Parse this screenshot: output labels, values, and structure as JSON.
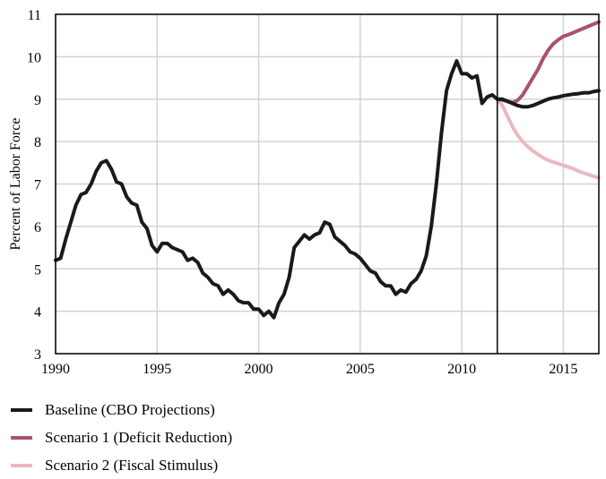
{
  "chart_data": {
    "type": "line",
    "title": "",
    "xlabel": "",
    "ylabel": "Percent of Labor Force",
    "xlim": [
      1990,
      2016.75
    ],
    "ylim": [
      3,
      11
    ],
    "xticks": [
      1990,
      1995,
      2000,
      2005,
      2010,
      2015
    ],
    "yticks": [
      3,
      4,
      5,
      6,
      7,
      8,
      9,
      10,
      11
    ],
    "grid": true,
    "projection_start": 2011.75,
    "legend_position": "bottom-left",
    "series": [
      {
        "name": "Baseline (CBO Projections)",
        "color": "#1a1a1a",
        "x": [
          1990,
          1990.25,
          1990.5,
          1990.75,
          1991,
          1991.25,
          1991.5,
          1991.75,
          1992,
          1992.25,
          1992.5,
          1992.75,
          1993,
          1993.25,
          1993.5,
          1993.75,
          1994,
          1994.25,
          1994.5,
          1994.75,
          1995,
          1995.25,
          1995.5,
          1995.75,
          1996,
          1996.25,
          1996.5,
          1996.75,
          1997,
          1997.25,
          1997.5,
          1997.75,
          1998,
          1998.25,
          1998.5,
          1998.75,
          1999,
          1999.25,
          1999.5,
          1999.75,
          2000,
          2000.25,
          2000.5,
          2000.75,
          2001,
          2001.25,
          2001.5,
          2001.75,
          2002,
          2002.25,
          2002.5,
          2002.75,
          2003,
          2003.25,
          2003.5,
          2003.75,
          2004,
          2004.25,
          2004.5,
          2004.75,
          2005,
          2005.25,
          2005.5,
          2005.75,
          2006,
          2006.25,
          2006.5,
          2006.75,
          2007,
          2007.25,
          2007.5,
          2007.75,
          2008,
          2008.25,
          2008.5,
          2008.75,
          2009,
          2009.25,
          2009.5,
          2009.75,
          2010,
          2010.25,
          2010.5,
          2010.75,
          2011,
          2011.25,
          2011.5,
          2011.75,
          2012,
          2012.25,
          2012.5,
          2012.75,
          2013,
          2013.25,
          2013.5,
          2013.75,
          2014,
          2014.25,
          2014.5,
          2014.75,
          2015,
          2015.25,
          2015.5,
          2015.75,
          2016,
          2016.25,
          2016.5,
          2016.75
        ],
        "values": [
          5.2,
          5.25,
          5.7,
          6.1,
          6.5,
          6.75,
          6.8,
          7.0,
          7.3,
          7.5,
          7.55,
          7.35,
          7.05,
          7.0,
          6.7,
          6.55,
          6.5,
          6.1,
          5.95,
          5.55,
          5.4,
          5.6,
          5.6,
          5.5,
          5.45,
          5.4,
          5.2,
          5.25,
          5.15,
          4.9,
          4.8,
          4.65,
          4.6,
          4.4,
          4.5,
          4.4,
          4.25,
          4.2,
          4.2,
          4.05,
          4.05,
          3.9,
          4.0,
          3.85,
          4.2,
          4.4,
          4.8,
          5.5,
          5.65,
          5.8,
          5.7,
          5.8,
          5.85,
          6.1,
          6.05,
          5.75,
          5.65,
          5.55,
          5.4,
          5.35,
          5.25,
          5.1,
          4.95,
          4.9,
          4.7,
          4.6,
          4.6,
          4.4,
          4.5,
          4.45,
          4.65,
          4.75,
          4.95,
          5.3,
          6.0,
          7.0,
          8.2,
          9.2,
          9.6,
          9.9,
          9.6,
          9.6,
          9.5,
          9.55,
          8.9,
          9.05,
          9.1,
          9.0,
          9.0,
          8.95,
          8.9,
          8.85,
          8.82,
          8.82,
          8.85,
          8.9,
          8.95,
          9.0,
          9.03,
          9.05,
          9.08,
          9.1,
          9.12,
          9.13,
          9.15,
          9.15,
          9.18,
          9.2
        ]
      },
      {
        "name": "Scenario 1 (Deficit Reduction)",
        "color": "#a8546a",
        "x": [
          2011.75,
          2012,
          2012.25,
          2012.5,
          2012.75,
          2013,
          2013.25,
          2013.5,
          2013.75,
          2014,
          2014.25,
          2014.5,
          2014.75,
          2015,
          2015.25,
          2015.5,
          2015.75,
          2016,
          2016.25,
          2016.5,
          2016.75
        ],
        "values": [
          9.0,
          8.98,
          8.95,
          8.92,
          8.97,
          9.1,
          9.3,
          9.5,
          9.7,
          9.95,
          10.15,
          10.3,
          10.4,
          10.48,
          10.52,
          10.57,
          10.62,
          10.67,
          10.72,
          10.77,
          10.82
        ]
      },
      {
        "name": "Scenario 2 (Fiscal Stimulus)",
        "color": "#e9b9c0",
        "x": [
          2011.75,
          2012,
          2012.25,
          2012.5,
          2012.75,
          2013,
          2013.25,
          2013.5,
          2013.75,
          2014,
          2014.25,
          2014.5,
          2014.75,
          2015,
          2015.25,
          2015.5,
          2015.75,
          2016,
          2016.25,
          2016.5,
          2016.75
        ],
        "values": [
          9.0,
          8.85,
          8.6,
          8.35,
          8.15,
          8.0,
          7.88,
          7.78,
          7.7,
          7.62,
          7.56,
          7.52,
          7.48,
          7.44,
          7.4,
          7.36,
          7.3,
          7.26,
          7.22,
          7.18,
          7.15
        ]
      }
    ]
  }
}
